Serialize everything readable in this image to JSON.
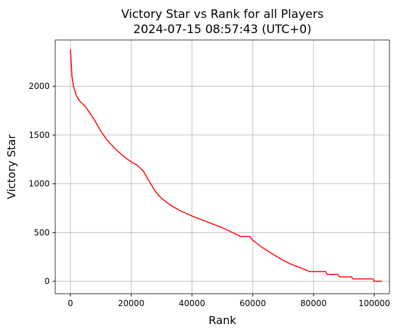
{
  "chart_data": {
    "type": "line",
    "title": "Victory Star vs Rank for all Players",
    "subtitle": "2024-07-15 08:57:43 (UTC+0)",
    "x_label": "Rank",
    "y_label": "Victory Star",
    "x": [
      0,
      500,
      1000,
      2000,
      3000,
      5000,
      8000,
      10000,
      12000,
      15000,
      18000,
      20000,
      22000,
      24000,
      26000,
      28000,
      30000,
      33000,
      36000,
      40000,
      45000,
      50000,
      53000,
      55000,
      56000,
      59000,
      60000,
      63000,
      66000,
      70000,
      73000,
      76000,
      78000,
      78500,
      84000,
      84500,
      88000,
      88500,
      92500,
      93000,
      99500,
      100000,
      102500
    ],
    "series": [
      {
        "name": "Victory Star",
        "color": "#ff0000",
        "values": [
          2380,
          2100,
          2000,
          1900,
          1850,
          1790,
          1650,
          1540,
          1450,
          1350,
          1270,
          1225,
          1190,
          1130,
          1020,
          920,
          850,
          780,
          725,
          670,
          610,
          550,
          505,
          475,
          460,
          460,
          420,
          350,
          290,
          215,
          170,
          135,
          110,
          100,
          100,
          70,
          70,
          45,
          45,
          25,
          25,
          0,
          0
        ]
      }
    ],
    "xlim": [
      -5000,
      105000
    ],
    "ylim": [
      -127,
      2475
    ],
    "xticks": [
      0,
      20000,
      40000,
      60000,
      80000,
      100000
    ],
    "yticks": [
      0,
      500,
      1000,
      1500,
      2000
    ],
    "grid": true
  }
}
